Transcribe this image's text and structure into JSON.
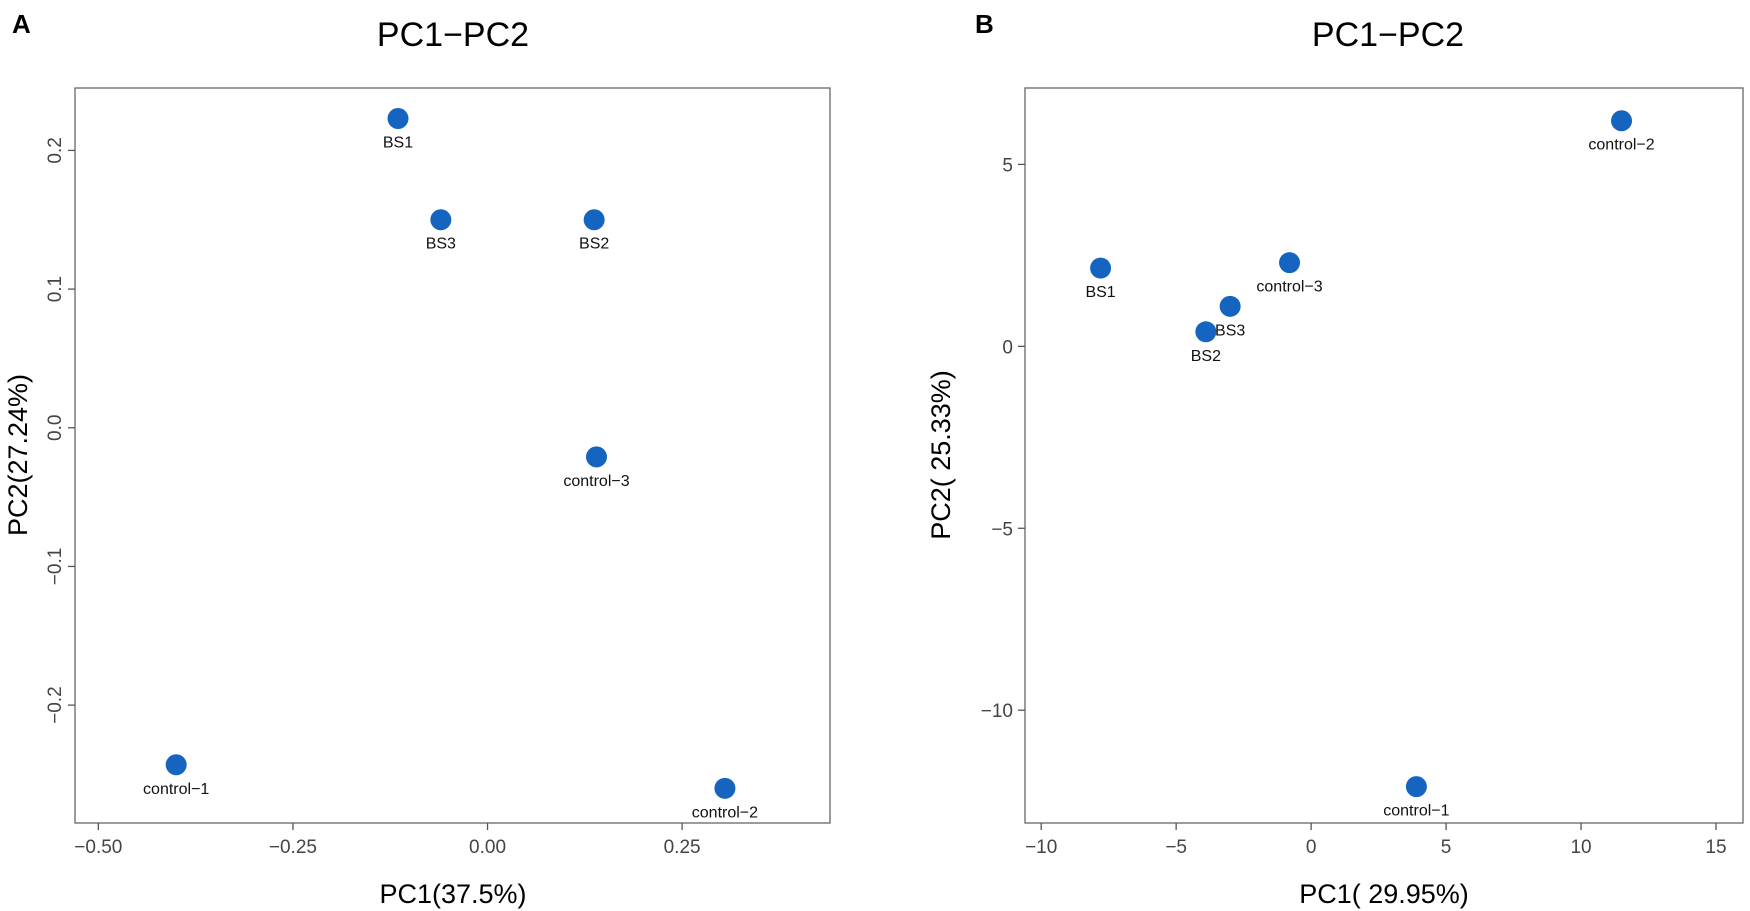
{
  "chart_data": [
    {
      "type": "scatter",
      "panel_label": "A",
      "title": "PC1−PC2",
      "xlabel": "PC1(37.5%)",
      "ylabel": "PC2(27.24%)",
      "xlim": [
        -0.53,
        0.44
      ],
      "ylim": [
        -0.285,
        0.245
      ],
      "xticks": [
        -0.5,
        -0.25,
        0.0,
        0.25
      ],
      "xtick_labels": [
        "−0.50",
        "−0.25",
        "0.00",
        "0.25"
      ],
      "yticks": [
        -0.2,
        -0.1,
        0.0,
        0.1,
        0.2
      ],
      "ytick_labels": [
        "−0.2",
        "−0.1",
        "0.0",
        "0.1",
        "0.2"
      ],
      "grid": false,
      "point_color": "#1565c0",
      "points": [
        {
          "label": "BS1",
          "x": -0.115,
          "y": 0.223,
          "label_pos": "below"
        },
        {
          "label": "BS3",
          "x": -0.06,
          "y": 0.15,
          "label_pos": "below"
        },
        {
          "label": "BS2",
          "x": 0.137,
          "y": 0.15,
          "label_pos": "below"
        },
        {
          "label": "control−3",
          "x": 0.14,
          "y": -0.021,
          "label_pos": "below"
        },
        {
          "label": "control−1",
          "x": -0.4,
          "y": -0.243,
          "label_pos": "below"
        },
        {
          "label": "control−2",
          "x": 0.305,
          "y": -0.26,
          "label_pos": "below"
        }
      ]
    },
    {
      "type": "scatter",
      "panel_label": "B",
      "title": "PC1−PC2",
      "xlabel": "PC1( 29.95%)",
      "ylabel": "PC2( 25.33%)",
      "xlim": [
        -10.6,
        16.0
      ],
      "ylim": [
        -13.1,
        7.1
      ],
      "xticks": [
        -10,
        -5,
        0,
        5,
        10,
        15
      ],
      "xtick_labels": [
        "−10",
        "−5",
        "0",
        "5",
        "10",
        "15"
      ],
      "yticks": [
        -10,
        -5,
        0,
        5
      ],
      "ytick_labels": [
        "−10",
        "−5",
        "0",
        "5"
      ],
      "grid": false,
      "point_color": "#1565c0",
      "points": [
        {
          "label": "control−2",
          "x": 11.5,
          "y": 6.2,
          "label_pos": "below"
        },
        {
          "label": "BS1",
          "x": -7.8,
          "y": 2.15,
          "label_pos": "below"
        },
        {
          "label": "control−3",
          "x": -0.8,
          "y": 2.3,
          "label_pos": "below"
        },
        {
          "label": "BS3",
          "x": -3.0,
          "y": 1.1,
          "label_pos": "below"
        },
        {
          "label": "BS2",
          "x": -3.9,
          "y": 0.4,
          "label_pos": "below"
        },
        {
          "label": "control−1",
          "x": 3.9,
          "y": -12.1,
          "label_pos": "below"
        }
      ]
    }
  ]
}
